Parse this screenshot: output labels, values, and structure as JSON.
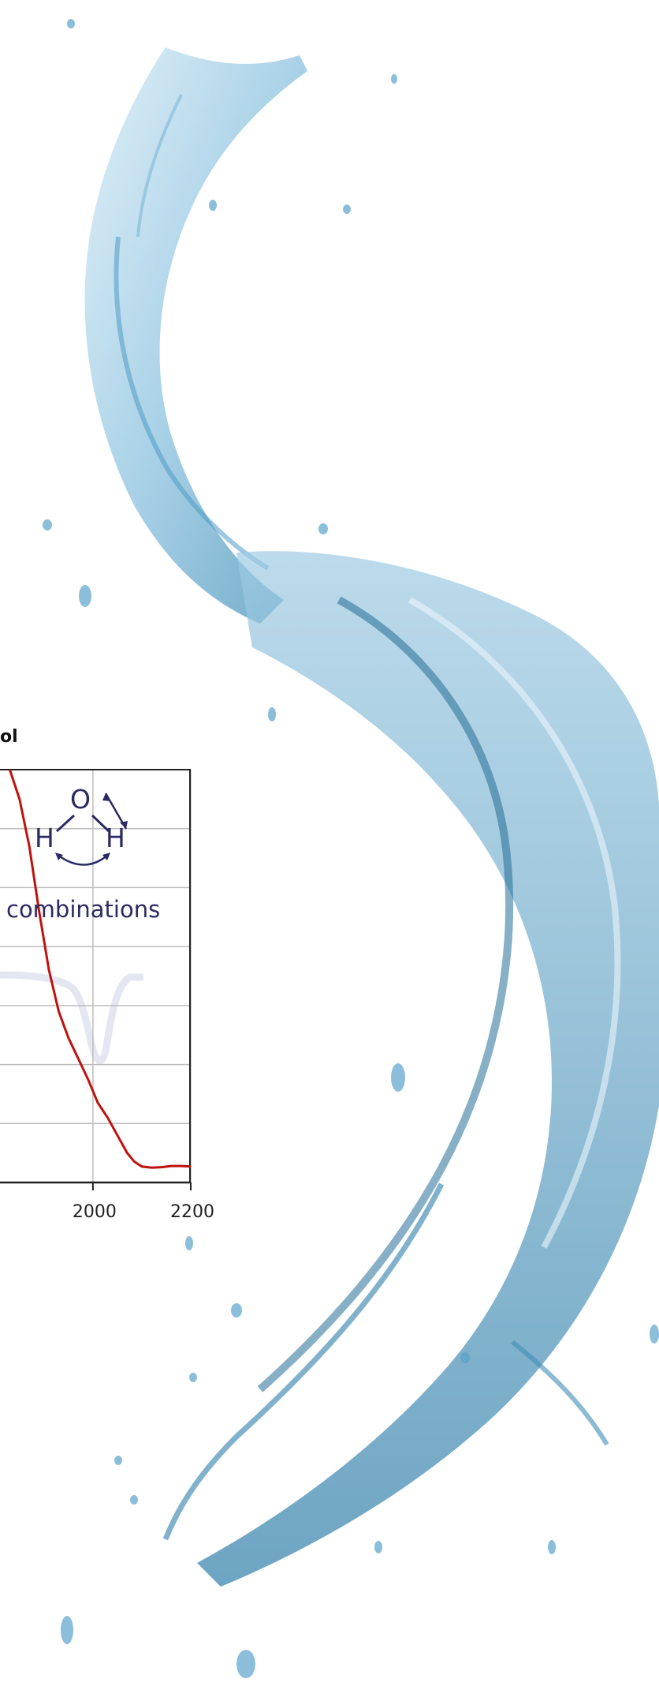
{
  "chart_data": {
    "type": "line",
    "title_fragment": "ol",
    "annotation": "combinations",
    "molecule": {
      "center_atom": "O",
      "left_atom": "H",
      "right_atom": "H"
    },
    "xlim": [
      1810,
      2200
    ],
    "ylim": [
      0,
      7
    ],
    "x_ticks": [
      2000,
      2200
    ],
    "x_tick_labels": [
      "2000",
      "2200"
    ],
    "grid": true,
    "series": [
      {
        "color": "#c0120c",
        "x": [
          1810,
          1830,
          1850,
          1870,
          1890,
          1910,
          1930,
          1950,
          1970,
          1990,
          2000,
          2010,
          2030,
          2050,
          2070,
          2085,
          2100,
          2120,
          2140,
          2160,
          2180,
          2200
        ],
        "y": [
          7.2,
          7.0,
          6.5,
          5.7,
          4.6,
          3.6,
          2.9,
          2.45,
          2.1,
          1.75,
          1.55,
          1.35,
          1.1,
          0.8,
          0.5,
          0.35,
          0.27,
          0.25,
          0.26,
          0.28,
          0.28,
          0.27
        ]
      }
    ]
  },
  "colors": {
    "curve": "#c0120c",
    "annotation": "#2c2a63",
    "grid": "#bdbdbd",
    "axis": "#222222",
    "water_light": "#cfe6f2",
    "water_mid": "#6fb0d4",
    "water_dark": "#2f7ea8"
  },
  "decor": {
    "splash": "water-splash-photo",
    "watermark": "spectrum-peak-watermark"
  }
}
